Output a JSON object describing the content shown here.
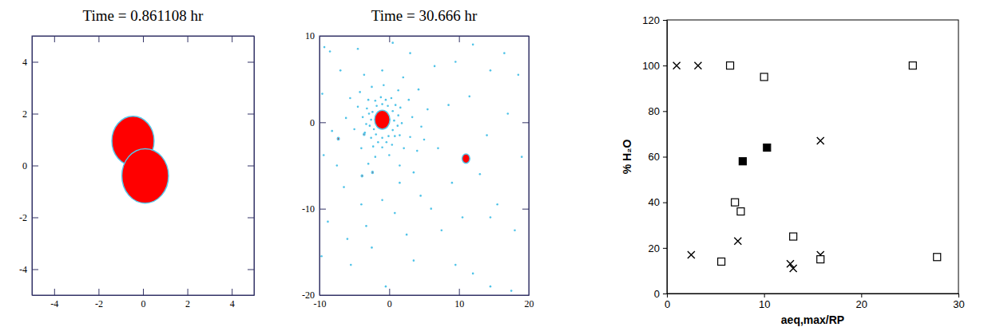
{
  "chart_data": [
    {
      "type": "scatter",
      "title": "Time = 0.861108 hr",
      "xlim": [
        -5,
        5
      ],
      "ylim": [
        -5,
        5
      ],
      "xticks": [
        -4,
        -2,
        0,
        2,
        4
      ],
      "yticks": [
        -4,
        -2,
        0,
        2,
        4
      ],
      "series": [
        {
          "marker": "circle",
          "color": "#ff0000",
          "x": [
            -0.45,
            0.1
          ],
          "values": [
            0.95,
            -0.4
          ],
          "size": [
            0.95,
            1.05
          ]
        }
      ]
    },
    {
      "type": "scatter",
      "title": "Time = 30.666 hr",
      "xlim": [
        -10,
        20
      ],
      "ylim": [
        -20,
        10
      ],
      "xticks": [
        -10,
        0,
        10,
        20
      ],
      "yticks": [
        -20,
        -10,
        0,
        10
      ],
      "series": [
        {
          "marker": "point",
          "color": "#4fc3e8",
          "x": [
            -2.6,
            -2.4,
            -2.2,
            -1.8,
            -1.0,
            -0.2,
            0.5,
            0.7,
            0.5,
            -0.1,
            -1.0,
            -1.9,
            -2.8,
            -2.9,
            -2.0,
            -0.5,
            0.9,
            1.3,
            1.2,
            0.8,
            -0.4,
            -1.6,
            -2.6,
            -3.3,
            -3.2,
            -1.2,
            0.3,
            1.6,
            1.8,
            1.5,
            0.4,
            -1.0,
            -2.3,
            -3.5,
            -3.8,
            -3.0,
            -4.5,
            -4.2,
            -2.5,
            -0.8,
            1.3,
            2.8,
            3.3,
            3.0,
            2.1,
            0.0,
            -2.0,
            -4.0,
            -5.0,
            -5.6,
            -3.6,
            -1.0,
            2.0,
            4.2,
            4.6,
            4.0,
            1.5,
            -3.0,
            -6.2,
            3.5,
            5.5,
            -8.5,
            -9.3,
            -9.6,
            -8.2,
            -9.4,
            -8.8,
            -9.7,
            -6.5,
            -6.0,
            -5.5,
            -3.3,
            -2.5,
            -1.0,
            0.8,
            2.5,
            3.5,
            -0.5,
            4.5,
            6.0,
            7.5,
            9.5,
            12.0,
            14.5,
            15.5,
            13.0,
            14.5,
            18.0,
            17.5,
            9.0,
            7.0,
            8.5,
            6.5,
            9.5,
            12.0,
            14.5,
            16.5,
            18.5,
            17.0,
            14.0,
            19.0,
            11.5,
            3.0,
            -4.5,
            -7.0,
            0.5,
            5.0,
            -7.5,
            10.5,
            -4.0,
            1.5
          ],
          "values": [
            0.3,
            1.2,
            -0.8,
            1.9,
            2.1,
            1.9,
            1.3,
            0.2,
            -0.9,
            -1.6,
            -1.8,
            -1.4,
            -0.4,
            1.0,
            2.5,
            2.6,
            2.0,
            0.8,
            -0.4,
            -1.6,
            -2.3,
            -2.3,
            -1.8,
            -0.2,
            1.6,
            2.9,
            2.8,
            1.7,
            -0.1,
            -1.5,
            -2.6,
            -2.9,
            -2.8,
            -1.2,
            0.6,
            2.6,
            1.8,
            3.5,
            4.1,
            4.3,
            3.7,
            2.6,
            0.6,
            -1.7,
            -3.0,
            -3.8,
            -4.0,
            -3.0,
            -0.8,
            2.8,
            5.5,
            6.0,
            5.2,
            3.8,
            -0.5,
            -3.3,
            -5.0,
            -4.8,
            0.5,
            -5.8,
            1.5,
            8.2,
            8.7,
            3.3,
            -1.0,
            -3.8,
            -11.5,
            -15.5,
            -7.5,
            -13.5,
            -16.5,
            -12.0,
            -14.5,
            -9.0,
            -10.5,
            -13.0,
            -16.0,
            -19.0,
            -8.5,
            -10.0,
            -12.5,
            -16.5,
            -17.5,
            -19.0,
            -9.5,
            -6.0,
            -11.0,
            -12.5,
            -19.5,
            -7.0,
            -3.0,
            2.0,
            6.5,
            7.0,
            9.0,
            6.0,
            8.0,
            5.5,
            1.0,
            -1.5,
            -4.0,
            3.0,
            8.0,
            8.5,
            6.0,
            9.2,
            -2.0,
            -5.0,
            -11.0,
            -9.5,
            -7.0
          ]
        },
        {
          "marker": "circle",
          "color": "#ff0000",
          "x": [
            -1.0,
            11.0,
            -7.3,
            -3.6,
            -2.4,
            -3.9
          ],
          "values": [
            0.3,
            -4.2,
            -1.9,
            -1.4,
            -5.8,
            -6.2
          ],
          "size": [
            1.1,
            0.55,
            0.15,
            0.12,
            0.12,
            0.12
          ]
        }
      ]
    },
    {
      "type": "scatter",
      "x_label": "aeq,max/RP",
      "y_label": "% H₂O",
      "xlim": [
        0,
        30
      ],
      "ylim": [
        0,
        120
      ],
      "xticks": [
        0,
        10,
        20,
        30
      ],
      "yticks": [
        0,
        20,
        40,
        60,
        80,
        100,
        120
      ],
      "series": [
        {
          "marker": "x",
          "color": "#000000",
          "x": [
            1.0,
            3.2,
            2.5,
            7.3,
            15.8,
            12.7,
            13.0,
            15.8
          ],
          "values": [
            100,
            100,
            17,
            23,
            67,
            13,
            11,
            17
          ]
        },
        {
          "marker": "square-open",
          "color": "#000000",
          "x": [
            6.5,
            10.0,
            25.3,
            7.0,
            7.6,
            5.6,
            13.0,
            15.8,
            27.8
          ],
          "values": [
            100,
            95,
            100,
            40,
            36,
            14,
            25,
            15,
            16
          ]
        },
        {
          "marker": "square",
          "color": "#000000",
          "x": [
            7.8,
            10.3
          ],
          "values": [
            58,
            64
          ]
        }
      ]
    }
  ]
}
